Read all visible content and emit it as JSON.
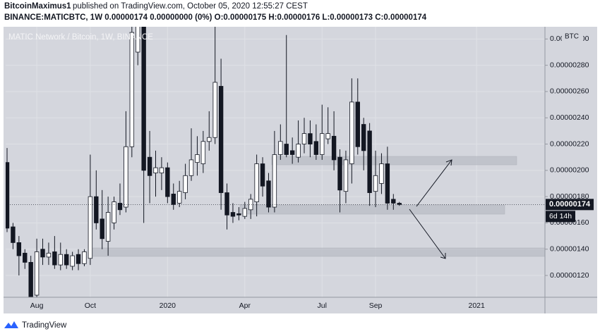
{
  "header": {
    "author": "BitcoinMaximus1",
    "published": "published on TradingView.com, October 05, 2020 12:55:27 CEST",
    "symbol_line": "BINANCE:MATICBTC, 1W  0.00000174 0.00000000 (0%)  O:0.00000175  H:0.00000176  L:0.00000173  C:0.00000174"
  },
  "footer": {
    "brand": "TradingView"
  },
  "chart_data": {
    "type": "candlestick",
    "title": "MATIC Network / Bitcoin, 1W, BINANCE",
    "currency": "BTC",
    "categories": [
      null,
      null,
      null,
      null,
      null,
      "Aug",
      null,
      null,
      null,
      null,
      null,
      null,
      null,
      null,
      "Oct",
      null,
      null,
      null,
      null,
      null,
      null,
      null,
      null,
      null,
      null,
      null,
      null,
      "2020",
      null,
      null,
      null,
      null,
      null,
      null,
      null,
      null,
      null,
      null,
      null,
      null,
      "Apr",
      null,
      null,
      null,
      null,
      null,
      null,
      null,
      null,
      null,
      null,
      null,
      null,
      "Jul",
      null,
      null,
      null,
      null,
      null,
      null,
      null,
      null,
      "Sep",
      null,
      null,
      null,
      null,
      null,
      null,
      null,
      null,
      null,
      null,
      null,
      null,
      null,
      null,
      null,
      null,
      "2021",
      null,
      null,
      null,
      null,
      null,
      null,
      null,
      null,
      null,
      null,
      null
    ],
    "open": [
      2.06e-06,
      1.57e-06,
      1.45e-06,
      1.37e-06,
      1.3e-06,
      1.05e-06,
      1.4e-06,
      1.34e-06,
      1.38e-06,
      1.28e-06,
      1.36e-06,
      1.27e-06,
      1.36e-06,
      1.29e-06,
      1.33e-06,
      1.8e-06,
      1.63e-06,
      1.46e-06,
      1.6e-06,
      1.75e-06,
      1.72e-06,
      2.18e-06,
      2.9e-06,
      3.18e-06,
      2.1e-06,
      1.98e-06,
      1.98e-06,
      2.02e-06,
      1.82e-06,
      1.75e-06,
      1.83e-06,
      1.96e-06,
      2.06e-06,
      2.05e-06,
      2.22e-06,
      2.25e-06,
      2.64e-06,
      1.83e-06,
      1.68e-06,
      1.67e-06,
      1.65e-06,
      1.7e-06,
      1.76e-06,
      2.05e-06,
      1.92e-06,
      1.72e-06,
      2.12e-06,
      2.2e-06,
      2.15e-06,
      2.1e-06,
      2.2e-06,
      2.28e-06,
      2.22e-06,
      2.12e-06,
      2.24e-06,
      2.26e-06,
      2.1e-06,
      1.84e-06,
      2.05e-06,
      2.52e-06,
      2.35e-06,
      2.3e-06,
      1.84e-06,
      1.9e-06,
      2.05e-06,
      1.78e-06,
      1.75e-06,
      null,
      null,
      null,
      null,
      null,
      null,
      null,
      null,
      null,
      null,
      null,
      null,
      null,
      null,
      null,
      null,
      null,
      null,
      null,
      null,
      null,
      null,
      null,
      null
    ],
    "high": [
      2.17e-06,
      1.6e-06,
      1.5e-06,
      1.4e-06,
      1.35e-06,
      1.48e-06,
      1.48e-06,
      1.45e-06,
      1.5e-06,
      1.45e-06,
      1.4e-06,
      1.38e-06,
      1.4e-06,
      1.4e-06,
      2.12e-06,
      2e-06,
      1.85e-06,
      1.8e-06,
      1.8e-06,
      1.9e-06,
      2.45e-06,
      3.15e-06,
      3.4e-06,
      3.25e-06,
      2.3e-06,
      2.15e-06,
      2.1e-06,
      2.06e-06,
      1.9e-06,
      1.92e-06,
      2.05e-06,
      2.32e-06,
      2.26e-06,
      2.3e-06,
      2.45e-06,
      3.1e-06,
      2.85e-06,
      1.9e-06,
      1.75e-06,
      1.72e-06,
      1.76e-06,
      1.82e-06,
      2.12e-06,
      2.1e-06,
      1.98e-06,
      2.3e-06,
      2.35e-06,
      3.03e-06,
      2.25e-06,
      2.38e-06,
      2.4e-06,
      2.38e-06,
      2.35e-06,
      2.5e-06,
      2.48e-06,
      2.45e-06,
      2.16e-06,
      2.15e-06,
      2.7e-06,
      2.7e-06,
      2.4e-06,
      2.36e-06,
      2.15e-06,
      2.13e-06,
      2.18e-06,
      1.82e-06,
      1.76e-06,
      null,
      null,
      null,
      null,
      null,
      null,
      null,
      null,
      null,
      null,
      null,
      null,
      null,
      null,
      null,
      null,
      null,
      null,
      null,
      null,
      null,
      null,
      null,
      null
    ],
    "low": [
      1.53e-06,
      1.4e-06,
      1.2e-06,
      1.25e-06,
      1e-06,
      1e-06,
      1.28e-06,
      1.28e-06,
      1.25e-06,
      1.24e-06,
      1.25e-06,
      1.24e-06,
      1.24e-06,
      1.27e-06,
      1.28e-06,
      1.55e-06,
      1.4e-06,
      1.35e-06,
      1.55e-06,
      1.66e-06,
      1.68e-06,
      2.1e-06,
      2.8e-06,
      1.6e-06,
      1.75e-06,
      1.8e-06,
      1.85e-06,
      1.75e-06,
      1.7e-06,
      1.72e-06,
      1.78e-06,
      1.92e-06,
      1.96e-06,
      1.98e-06,
      2.15e-06,
      2.2e-06,
      1.7e-06,
      1.55e-06,
      1.6e-06,
      1.62e-06,
      1.63e-06,
      1.63e-06,
      1.65e-06,
      1.8e-06,
      1.68e-06,
      1.68e-06,
      2.08e-06,
      2.1e-06,
      2.05e-06,
      2.06e-06,
      2.13e-06,
      2.1e-06,
      2.08e-06,
      2.08e-06,
      2.2e-06,
      2e-06,
      1.68e-06,
      1.75e-06,
      1.9e-06,
      2.12e-06,
      2e-06,
      1.73e-06,
      1.72e-06,
      1.82e-06,
      1.7e-06,
      1.7e-06,
      1.73e-06,
      null,
      null,
      null,
      null,
      null,
      null,
      null,
      null,
      null,
      null,
      null,
      null,
      null,
      null,
      null,
      null,
      null,
      null,
      null,
      null,
      null,
      null,
      null,
      null
    ],
    "close": [
      1.56e-06,
      1.45e-06,
      1.35e-06,
      1.3e-06,
      1.03e-06,
      1.38e-06,
      1.34e-06,
      1.37e-06,
      1.28e-06,
      1.36e-06,
      1.28e-06,
      1.35e-06,
      1.29e-06,
      1.38e-06,
      1.8e-06,
      1.6e-06,
      1.48e-06,
      1.68e-06,
      1.76e-06,
      1.7e-06,
      2.18e-06,
      3.05e-06,
      3.2e-06,
      2e-06,
      1.96e-06,
      2.02e-06,
      2.02e-06,
      1.8e-06,
      1.74e-06,
      1.84e-06,
      1.96e-06,
      2.08e-06,
      2.12e-06,
      2.22e-06,
      2.25e-06,
      2.67e-06,
      1.83e-06,
      1.66e-06,
      1.65e-06,
      1.66e-06,
      1.71e-06,
      1.78e-06,
      2.05e-06,
      1.88e-06,
      1.72e-06,
      2.12e-06,
      2.22e-06,
      2.12e-06,
      2.12e-06,
      2.2e-06,
      2.28e-06,
      2.2e-06,
      2.12e-06,
      2.28e-06,
      2.28e-06,
      2.08e-06,
      1.85e-06,
      2.08e-06,
      2.52e-06,
      2.18e-06,
      2.15e-06,
      1.83e-06,
      1.96e-06,
      2.05e-06,
      1.75e-06,
      1.75e-06,
      1.74e-06,
      null,
      null,
      null,
      null,
      null,
      null,
      null,
      null,
      null,
      null,
      null,
      null,
      null,
      null,
      null,
      null,
      null,
      null,
      null,
      null,
      null,
      null,
      null,
      null
    ],
    "up_color": "#ffffff",
    "down_color": "#131722",
    "ylim": [
      1.034e-06,
      3.093e-06
    ],
    "yticks": [
      {
        "value": 1.2e-06,
        "label": "0.00000120"
      },
      {
        "value": 1.4e-06,
        "label": "0.00000140"
      },
      {
        "value": 1.6e-06,
        "label": "0.00000160"
      },
      {
        "value": 1.8e-06,
        "label": "0.00000180"
      },
      {
        "value": 2e-06,
        "label": "0.00000200"
      },
      {
        "value": 2.2e-06,
        "label": "0.00000220"
      },
      {
        "value": 2.4e-06,
        "label": "0.00000240"
      },
      {
        "value": 2.6e-06,
        "label": "0.00000260"
      },
      {
        "value": 2.8e-06,
        "label": "0.00000280"
      },
      {
        "value": 3e-06,
        "label": "0.00000300"
      }
    ],
    "grid": true,
    "last_price": {
      "value": 1.74e-06,
      "label": "0.00000174"
    },
    "countdown": "6d 14h"
  }
}
